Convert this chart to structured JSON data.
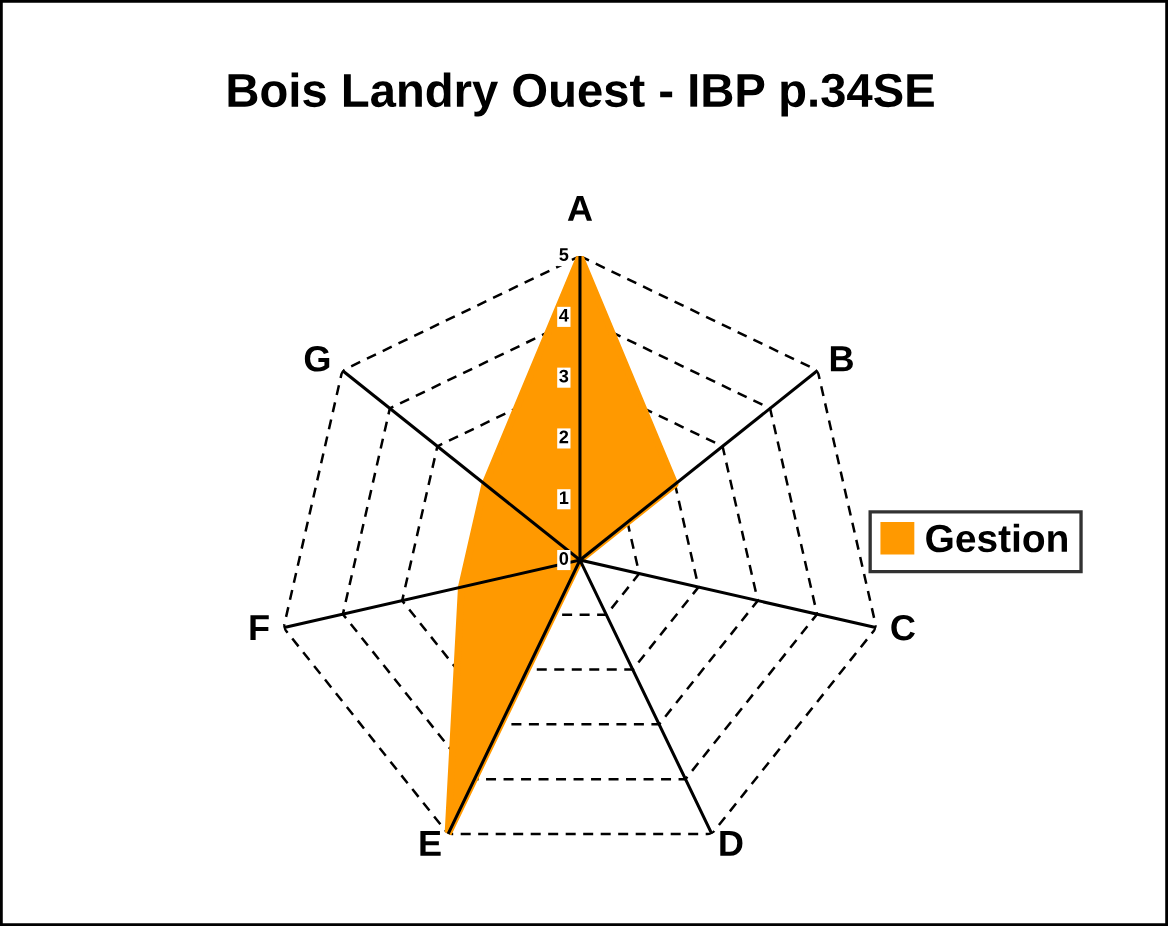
{
  "chart_data": {
    "type": "radar",
    "title": "Bois Landry Ouest - IBP p.34SE",
    "categories": [
      "A",
      "B",
      "C",
      "D",
      "E",
      "F",
      "G"
    ],
    "series": [
      {
        "name": "Gestion",
        "color": "#ff9900",
        "values": [
          5,
          2,
          0,
          0,
          5,
          2,
          2
        ]
      }
    ],
    "ylim": [
      0,
      5
    ],
    "yticks": [
      0,
      1,
      2,
      3,
      4,
      5
    ],
    "grid": true,
    "legend": "right"
  }
}
